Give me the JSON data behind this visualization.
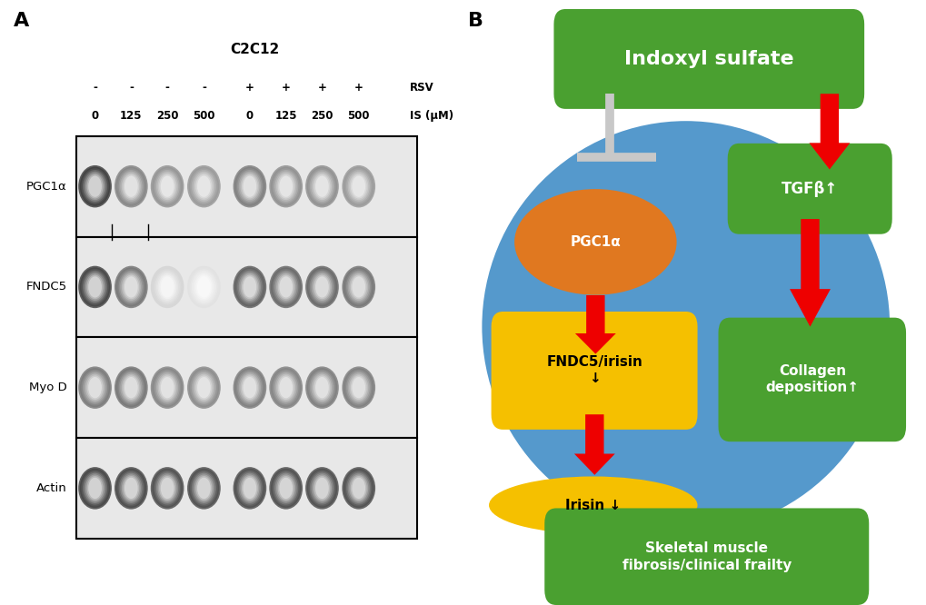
{
  "panel_a": {
    "title": "C2C12",
    "rsv_label": "RSV",
    "is_label": "IS (μM)",
    "rsv_row": [
      "-",
      "-",
      "-",
      "-",
      "+",
      "+",
      "+",
      "+"
    ],
    "is_row": [
      "0",
      "125",
      "250",
      "500",
      "0",
      "125",
      "250",
      "500"
    ],
    "proteins": [
      "PGC1α",
      "FNDC5",
      "Myo D",
      "Actin"
    ],
    "label_A": "A",
    "pgc1a_intensities": [
      0.88,
      0.55,
      0.48,
      0.46,
      0.58,
      0.5,
      0.5,
      0.46
    ],
    "fndc5_intensities": [
      0.85,
      0.62,
      0.18,
      0.12,
      0.72,
      0.68,
      0.68,
      0.62
    ],
    "myod_intensities": [
      0.6,
      0.62,
      0.55,
      0.52,
      0.58,
      0.56,
      0.58,
      0.58
    ],
    "actin_intensities": [
      0.85,
      0.82,
      0.8,
      0.8,
      0.8,
      0.8,
      0.8,
      0.8
    ]
  },
  "panel_b": {
    "label_B": "B",
    "indoxyl_sulfate": "Indoxyl sulfate",
    "pgc1a": "PGC1α",
    "tgfb": "TGFβ↑",
    "fndc5": "FNDC5/irisin\n↓",
    "collagen": "Collagen\ndeposition↑",
    "irisin": "Irisin ↓",
    "skeletal": "Skeletal muscle\nfibrosis/clinical frailty",
    "green_color": "#4aA030",
    "orange_color": "#e07820",
    "yellow_color": "#f5c000",
    "blue_oval_color": "#5599cc",
    "inhibit_color": "#c8c8c8",
    "arrow_color": "#ee0000",
    "white_text": "#ffffff"
  }
}
